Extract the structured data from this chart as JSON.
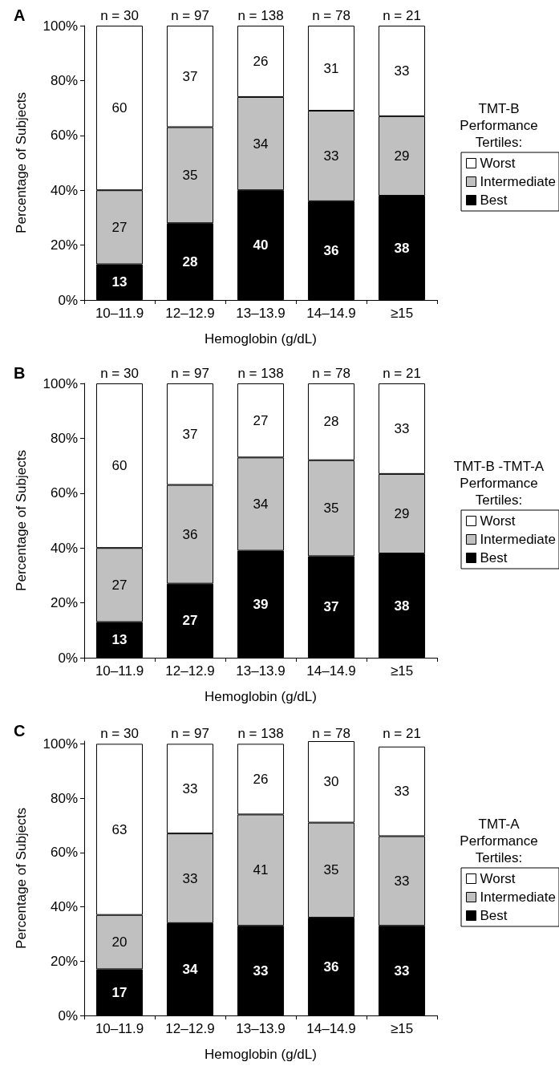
{
  "chart_data": [
    {
      "type": "bar",
      "title": "A",
      "xlabel": "Hemoglobin (g/dL)",
      "ylabel": "Percentage of Subjects",
      "legend_title": "TMT-B Performance Tertiles:",
      "stacked": true,
      "data_labels": true,
      "legend": "right",
      "grid": false,
      "categories": [
        "10–11.9",
        "12–12.9",
        "13–13.9",
        "14–14.9",
        "≥15"
      ],
      "series": [
        {
          "name": "Best",
          "color": "#000000",
          "values": [
            13,
            28,
            40,
            36,
            38
          ]
        },
        {
          "name": "Intermediate",
          "color": "#c0c0c0",
          "values": [
            27,
            35,
            34,
            33,
            29
          ]
        },
        {
          "name": "Worst",
          "color": "#ffffff",
          "values": [
            60,
            37,
            26,
            31,
            33
          ]
        }
      ],
      "ylim": [
        0,
        100
      ],
      "yticks": [
        {
          "value": 0,
          "label": "0%"
        },
        {
          "value": 20,
          "label": "20%"
        },
        {
          "value": 40,
          "label": "40%"
        },
        {
          "value": 60,
          "label": "60%"
        },
        {
          "value": 80,
          "label": "80%"
        },
        {
          "value": 100,
          "label": "100%"
        }
      ],
      "annotations": [
        {
          "text": "n = 30",
          "x": "10–11.9",
          "y": 100
        },
        {
          "text": "n = 97",
          "x": "12–12.9",
          "y": 100
        },
        {
          "text": "n = 138",
          "x": "13–13.9",
          "y": 100
        },
        {
          "text": "n = 78",
          "x": "14–14.9",
          "y": 100
        },
        {
          "text": "n = 21",
          "x": "≥15",
          "y": 100
        }
      ]
    },
    {
      "type": "bar",
      "title": "B",
      "xlabel": "Hemoglobin (g/dL)",
      "ylabel": "Percentage of Subjects",
      "legend_title": "TMT-B -TMT-A Performance Tertiles:",
      "stacked": true,
      "data_labels": true,
      "legend": "right",
      "grid": false,
      "categories": [
        "10–11.9",
        "12–12.9",
        "13–13.9",
        "14–14.9",
        "≥15"
      ],
      "series": [
        {
          "name": "Best",
          "color": "#000000",
          "values": [
            13,
            27,
            39,
            37,
            38
          ]
        },
        {
          "name": "Intermediate",
          "color": "#c0c0c0",
          "values": [
            27,
            36,
            34,
            35,
            29
          ]
        },
        {
          "name": "Worst",
          "color": "#ffffff",
          "values": [
            60,
            37,
            27,
            28,
            33
          ]
        }
      ],
      "ylim": [
        0,
        100
      ],
      "yticks": [
        {
          "value": 0,
          "label": "0%"
        },
        {
          "value": 20,
          "label": "20%"
        },
        {
          "value": 40,
          "label": "40%"
        },
        {
          "value": 60,
          "label": "60%"
        },
        {
          "value": 80,
          "label": "80%"
        },
        {
          "value": 100,
          "label": "100%"
        }
      ],
      "annotations": [
        {
          "text": "n = 30",
          "x": "10–11.9",
          "y": 100
        },
        {
          "text": "n = 97",
          "x": "12–12.9",
          "y": 100
        },
        {
          "text": "n = 138",
          "x": "13–13.9",
          "y": 100
        },
        {
          "text": "n = 78",
          "x": "14–14.9",
          "y": 100
        },
        {
          "text": "n = 21",
          "x": "≥15",
          "y": 100
        }
      ]
    },
    {
      "type": "bar",
      "title": "C",
      "xlabel": "Hemoglobin (g/dL)",
      "ylabel": "Percentage of Subjects",
      "legend_title": "TMT-A Performance Tertiles:",
      "stacked": true,
      "data_labels": true,
      "legend": "right",
      "grid": false,
      "categories": [
        "10–11.9",
        "12–12.9",
        "13–13.9",
        "14–14.9",
        "≥15"
      ],
      "series": [
        {
          "name": "Best",
          "color": "#000000",
          "values": [
            17,
            34,
            33,
            36,
            33
          ]
        },
        {
          "name": "Intermediate",
          "color": "#c0c0c0",
          "values": [
            20,
            33,
            41,
            35,
            33
          ]
        },
        {
          "name": "Worst",
          "color": "#ffffff",
          "values": [
            63,
            33,
            26,
            30,
            33
          ]
        }
      ],
      "ylim": [
        0,
        101
      ],
      "yticks": [
        {
          "value": 0,
          "label": "0%"
        },
        {
          "value": 20,
          "label": "20%"
        },
        {
          "value": 40,
          "label": "40%"
        },
        {
          "value": 60,
          "label": "60%"
        },
        {
          "value": 80,
          "label": "80%"
        },
        {
          "value": 100,
          "label": "100%"
        }
      ],
      "annotations": [
        {
          "text": "n = 30",
          "x": "10–11.9",
          "y": 100
        },
        {
          "text": "n = 97",
          "x": "12–12.9",
          "y": 100
        },
        {
          "text": "n = 138",
          "x": "13–13.9",
          "y": 100
        },
        {
          "text": "n = 78",
          "x": "14–14.9",
          "y": 100
        },
        {
          "text": "n = 21",
          "x": "≥15",
          "y": 100
        }
      ]
    }
  ]
}
